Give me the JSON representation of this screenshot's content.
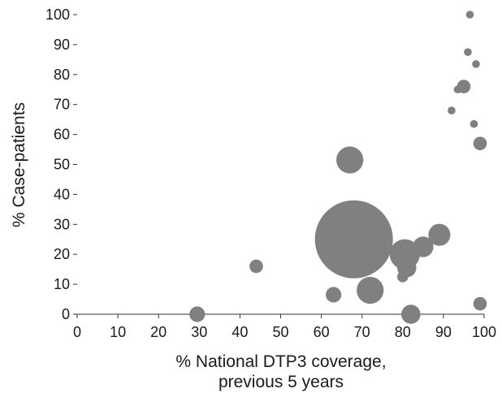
{
  "chart_data": {
    "type": "scatter",
    "title": "",
    "xlabel_lines": [
      "% National DTP3 coverage,",
      "previous 5 years"
    ],
    "ylabel": "% Case-patients",
    "xlim": [
      0,
      100
    ],
    "ylim": [
      0,
      100
    ],
    "xticks": [
      0,
      10,
      20,
      30,
      40,
      50,
      60,
      70,
      80,
      90,
      100
    ],
    "yticks": [
      0,
      10,
      20,
      30,
      40,
      50,
      60,
      70,
      80,
      90,
      100
    ],
    "grid": false,
    "bubble_color": "#808080",
    "points": [
      {
        "x": 68,
        "y": 25,
        "size": 100
      },
      {
        "x": 67,
        "y": 51.5,
        "size": 12
      },
      {
        "x": 80.5,
        "y": 20,
        "size": 15
      },
      {
        "x": 72,
        "y": 8,
        "size": 12
      },
      {
        "x": 89,
        "y": 26.5,
        "size": 8
      },
      {
        "x": 85,
        "y": 22.5,
        "size": 7
      },
      {
        "x": 81,
        "y": 15.5,
        "size": 6
      },
      {
        "x": 68,
        "y": 30.5,
        "size": 4
      },
      {
        "x": 68,
        "y": 26.5,
        "size": 2
      },
      {
        "x": 80,
        "y": 12.5,
        "size": 2
      },
      {
        "x": 82,
        "y": 0,
        "size": 6
      },
      {
        "x": 63,
        "y": 6.5,
        "size": 4
      },
      {
        "x": 44,
        "y": 16,
        "size": 3
      },
      {
        "x": 29.5,
        "y": 0,
        "size": 4
      },
      {
        "x": 95,
        "y": 76,
        "size": 3
      },
      {
        "x": 99,
        "y": 57,
        "size": 3
      },
      {
        "x": 99,
        "y": 3.5,
        "size": 3
      },
      {
        "x": 96.5,
        "y": 100,
        "size": 1
      },
      {
        "x": 96,
        "y": 87.5,
        "size": 1
      },
      {
        "x": 98,
        "y": 83.5,
        "size": 1
      },
      {
        "x": 93.5,
        "y": 75,
        "size": 1
      },
      {
        "x": 92,
        "y": 68,
        "size": 1
      },
      {
        "x": 97.5,
        "y": 63.5,
        "size": 1
      }
    ]
  }
}
